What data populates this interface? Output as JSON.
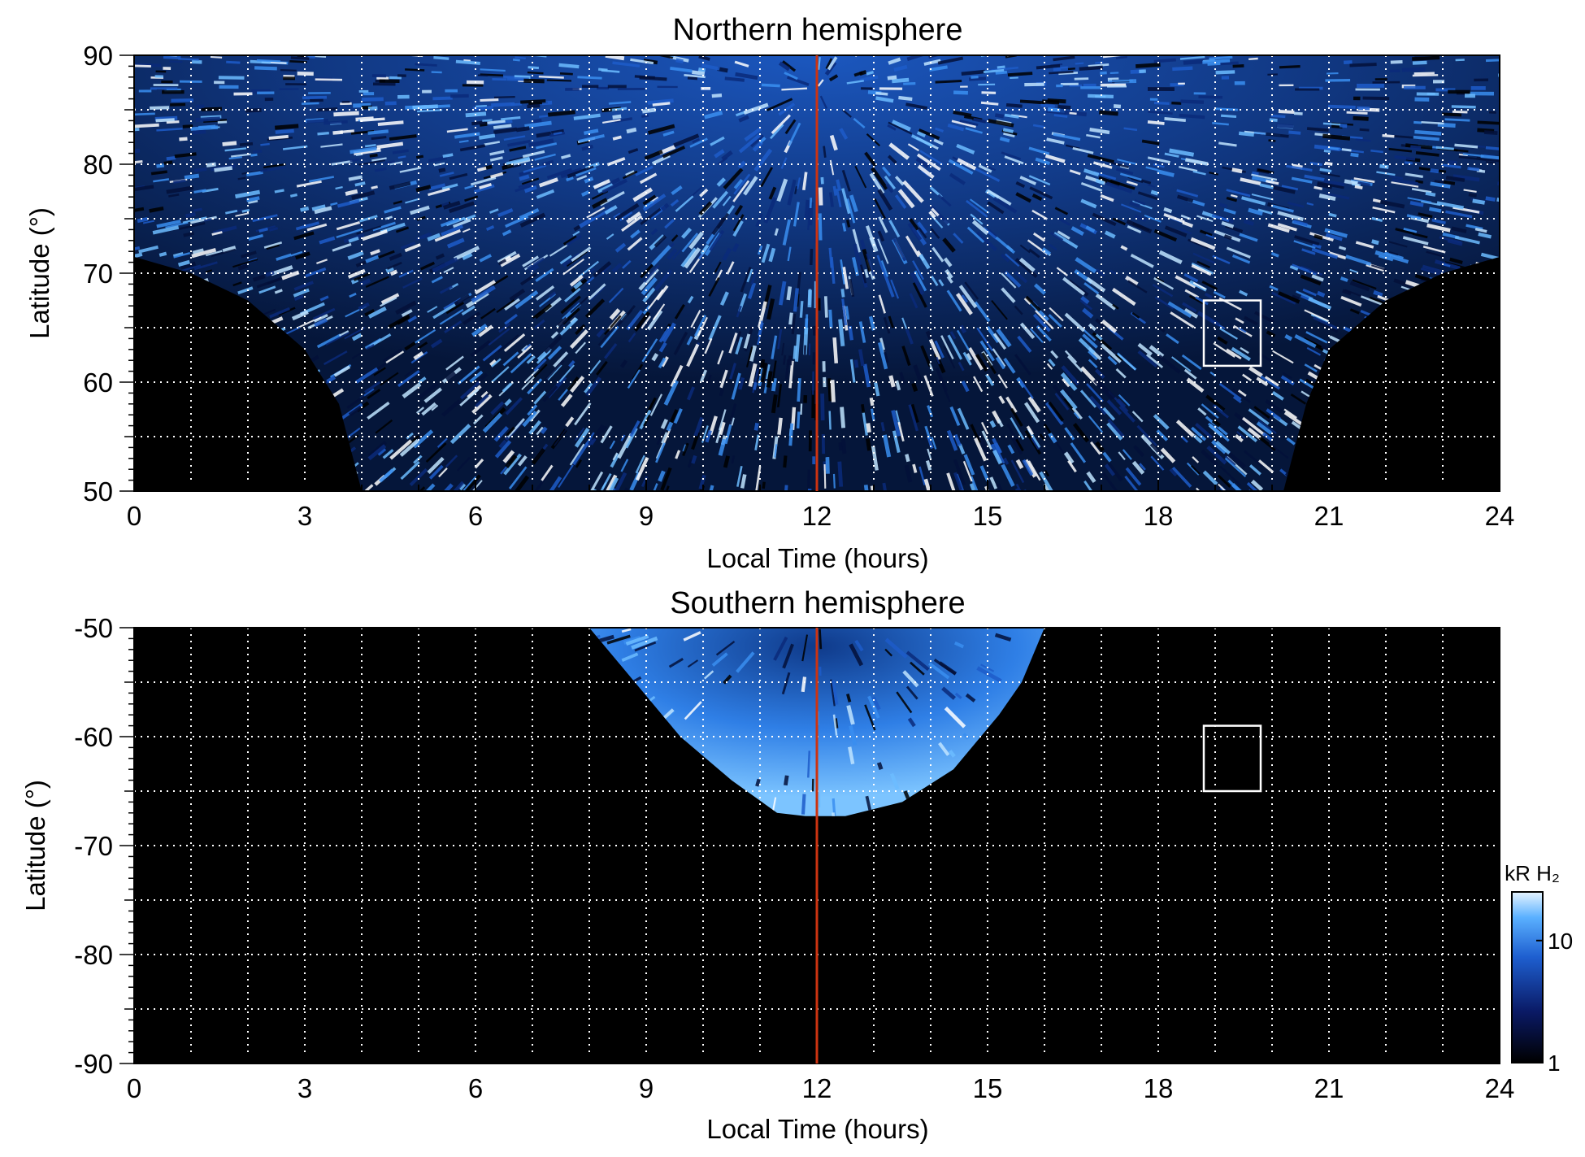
{
  "chart_data": [
    {
      "type": "heatmap",
      "title": "Northern hemisphere",
      "xlabel": "Local Time (hours)",
      "ylabel": "Latitude (°)",
      "xlim": [
        0,
        24
      ],
      "ylim": [
        50,
        90
      ],
      "xticks": [
        0,
        3,
        6,
        9,
        12,
        15,
        18,
        21,
        24
      ],
      "yticks": [
        50,
        60,
        70,
        80,
        90
      ],
      "grid": true,
      "marker_line_x": 12,
      "marker_line_color": "#cc3311",
      "box": {
        "x0": 18.8,
        "x1": 19.8,
        "y0": 61.5,
        "y1": 67.5
      },
      "coverage_edge_lat": [
        [
          0,
          71.5
        ],
        [
          1,
          70
        ],
        [
          2,
          67.5
        ],
        [
          3,
          63
        ],
        [
          3.6,
          58
        ],
        [
          4,
          50
        ],
        [
          20.2,
          50
        ],
        [
          20.6,
          58
        ],
        [
          21,
          63
        ],
        [
          22,
          67.5
        ],
        [
          23,
          70
        ],
        [
          24,
          71.5
        ]
      ]
    },
    {
      "type": "heatmap",
      "title": "Southern hemisphere",
      "xlabel": "Local Time (hours)",
      "ylabel": "Latitude (°)",
      "xlim": [
        0,
        24
      ],
      "ylim": [
        -90,
        -50
      ],
      "xticks": [
        0,
        3,
        6,
        9,
        12,
        15,
        18,
        21,
        24
      ],
      "yticks": [
        -90,
        -80,
        -70,
        -60,
        -50
      ],
      "grid": true,
      "marker_line_x": 12,
      "marker_line_color": "#cc3311",
      "box": {
        "x0": 18.8,
        "x1": 19.8,
        "y0": -65,
        "y1": -59
      },
      "coverage_edge_lat": [
        [
          8,
          -50
        ],
        [
          8.8,
          -55
        ],
        [
          9.6,
          -60
        ],
        [
          10.5,
          -64
        ],
        [
          11.3,
          -67
        ],
        [
          11.8,
          -67.3
        ],
        [
          12.5,
          -67.3
        ],
        [
          13.5,
          -66
        ],
        [
          14.4,
          -63
        ],
        [
          15.2,
          -58
        ],
        [
          15.6,
          -55
        ],
        [
          16,
          -50
        ]
      ]
    }
  ],
  "colorbar": {
    "label": "kR H₂",
    "ticks": [
      {
        "value": 1,
        "label": "1"
      },
      {
        "value": 10,
        "label": "10"
      }
    ],
    "range": [
      1,
      25
    ],
    "scale": "log",
    "colors": [
      "#000000",
      "#0a1a66",
      "#1e5fd0",
      "#5ab0ff",
      "#e6f4ff"
    ]
  }
}
